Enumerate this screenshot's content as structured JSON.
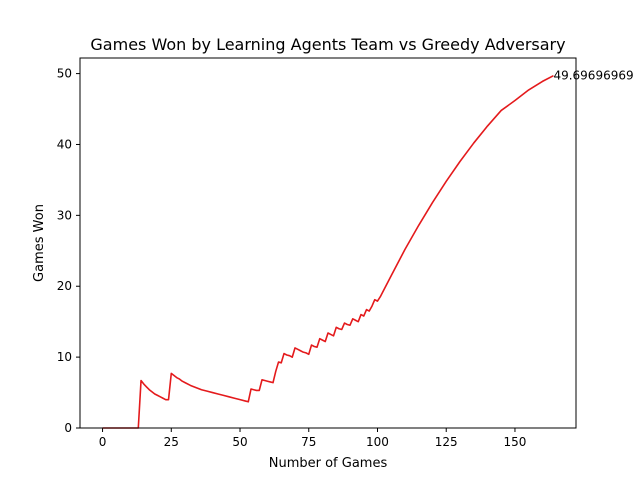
{
  "chart_data": {
    "type": "line",
    "title": "Games Won by Learning Agents Team vs Greedy Adversary",
    "xlabel": "Number of Games",
    "ylabel": "Games Won",
    "xlim": [
      -8.2,
      172.2
    ],
    "ylim": [
      0,
      52.2
    ],
    "xticks": [
      0,
      25,
      50,
      75,
      100,
      125,
      150
    ],
    "yticks": [
      0,
      10,
      20,
      30,
      40,
      50
    ],
    "grid": false,
    "legend": "none",
    "series": [
      {
        "color": "#e41a1c",
        "x": [
          0,
          2,
          4,
          6,
          8,
          10,
          12,
          13,
          14,
          15,
          16,
          17,
          18,
          19,
          20,
          21,
          22,
          23,
          24,
          25,
          26,
          27,
          28,
          29,
          30,
          32,
          34,
          36,
          38,
          40,
          42,
          44,
          46,
          48,
          50,
          52,
          53,
          54,
          55,
          56,
          57,
          58,
          59,
          60,
          61,
          62,
          63,
          64,
          65,
          66,
          67,
          68,
          69,
          70,
          71,
          72,
          73,
          74,
          75,
          76,
          77,
          78,
          79,
          80,
          81,
          82,
          83,
          84,
          85,
          86,
          87,
          88,
          89,
          90,
          91,
          92,
          93,
          94,
          95,
          96,
          97,
          98,
          99,
          100,
          101,
          105,
          110,
          115,
          120,
          125,
          130,
          135,
          140,
          145,
          150,
          155,
          160,
          164
        ],
        "y": [
          0,
          0,
          0,
          0,
          0,
          0,
          0,
          0,
          6.7,
          6.2,
          5.8,
          5.4,
          5.1,
          4.8,
          4.6,
          4.4,
          4.2,
          4.0,
          4.0,
          7.7,
          7.4,
          7.1,
          6.9,
          6.6,
          6.4,
          6.0,
          5.7,
          5.4,
          5.2,
          5.0,
          4.8,
          4.6,
          4.4,
          4.2,
          4.0,
          3.8,
          3.7,
          5.5,
          5.4,
          5.3,
          5.3,
          6.8,
          6.7,
          6.6,
          6.5,
          6.4,
          8.0,
          9.3,
          9.2,
          10.5,
          10.3,
          10.2,
          10.0,
          11.3,
          11.1,
          10.9,
          10.7,
          10.6,
          10.4,
          11.7,
          11.5,
          11.4,
          12.6,
          12.4,
          12.2,
          13.4,
          13.2,
          13.0,
          14.2,
          14.0,
          13.9,
          14.8,
          14.6,
          14.5,
          15.4,
          15.2,
          15.0,
          16.0,
          15.8,
          16.7,
          16.5,
          17.2,
          18.1,
          17.9,
          18.5,
          21.5,
          25.2,
          28.6,
          31.8,
          34.8,
          37.6,
          40.2,
          42.6,
          44.8,
          46.2,
          47.7,
          48.9,
          49.7
        ]
      }
    ],
    "annotations": [
      {
        "text": "49.69696969",
        "x": 164,
        "y": 49.7
      }
    ]
  }
}
